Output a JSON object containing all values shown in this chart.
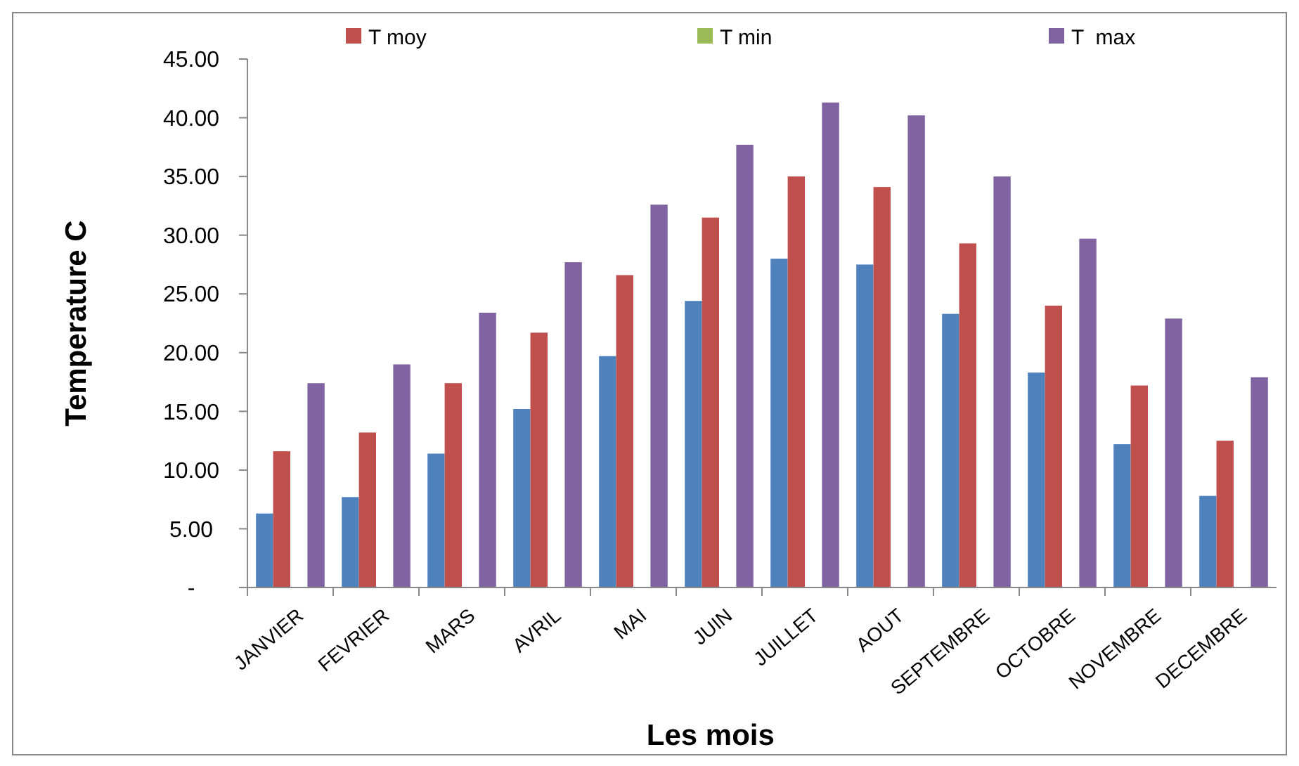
{
  "chart_data": {
    "type": "bar",
    "xlabel": "Les mois",
    "ylabel": "Temperature C",
    "categories": [
      "JANVIER",
      "FEVRIER",
      "MARS",
      "AVRIL",
      "MAI",
      "JUIN",
      "JUILLET",
      "AOUT",
      "SEPTEMBRE",
      "OCTOBRE",
      "NOVEMBRE",
      "DECEMBRE"
    ],
    "series": [
      {
        "color": "#4f81bd",
        "values": [
          6.3,
          7.7,
          11.4,
          15.2,
          19.7,
          24.4,
          28.0,
          27.5,
          23.3,
          18.3,
          12.2,
          7.8
        ]
      },
      {
        "name": "T moy",
        "color": "#c0504d",
        "values": [
          11.6,
          13.2,
          17.4,
          21.7,
          26.6,
          31.5,
          35.0,
          34.1,
          29.3,
          24.0,
          17.2,
          12.5
        ]
      },
      {
        "name": "T min",
        "color": "#9bbb59",
        "values": [
          null,
          null,
          null,
          null,
          null,
          null,
          null,
          null,
          null,
          null,
          null,
          null
        ]
      },
      {
        "name": "T  max",
        "color": "#8064a2",
        "values": [
          17.4,
          19.0,
          23.4,
          27.7,
          32.6,
          37.7,
          41.3,
          40.2,
          35.0,
          29.7,
          22.9,
          17.9
        ]
      }
    ],
    "ylim": [
      0,
      45
    ],
    "yticks": [
      {
        "value": 0,
        "label": "-"
      },
      {
        "value": 5,
        "label": "5.00"
      },
      {
        "value": 10,
        "label": "10.00"
      },
      {
        "value": 15,
        "label": "15.00"
      },
      {
        "value": 20,
        "label": "20.00"
      },
      {
        "value": 25,
        "label": "25.00"
      },
      {
        "value": 30,
        "label": "30.00"
      },
      {
        "value": 35,
        "label": "35.00"
      },
      {
        "value": 40,
        "label": "40.00"
      },
      {
        "value": 45,
        "label": "45.00"
      }
    ],
    "grid": false,
    "legend": "top"
  }
}
